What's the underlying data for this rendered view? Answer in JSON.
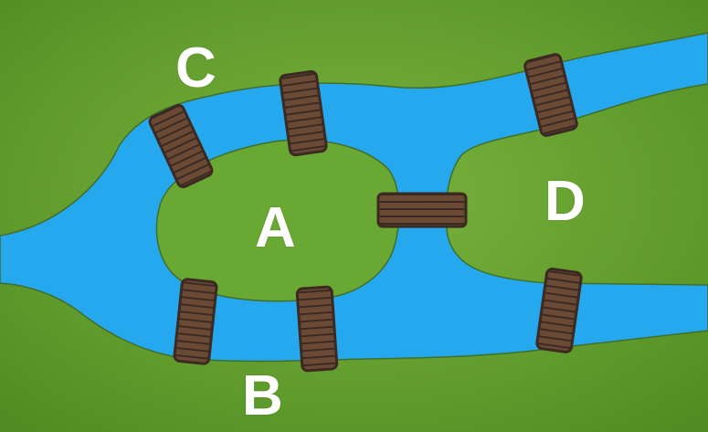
{
  "regions": {
    "c": {
      "label": "C"
    },
    "a": {
      "label": "A"
    },
    "d": {
      "label": "D"
    },
    "b": {
      "label": "B"
    }
  },
  "bridges": [
    {
      "connects": [
        "C",
        "A"
      ]
    },
    {
      "connects": [
        "C",
        "A"
      ]
    },
    {
      "connects": [
        "C",
        "D"
      ]
    },
    {
      "connects": [
        "A",
        "D"
      ]
    },
    {
      "connects": [
        "A",
        "B"
      ]
    },
    {
      "connects": [
        "A",
        "B"
      ]
    },
    {
      "connects": [
        "D",
        "B"
      ]
    }
  ],
  "colors": {
    "grass": "#5f9a2c",
    "grass_light": "#74ad3a",
    "water": "#26a8ee",
    "water_edge": "#3f6f2a",
    "bridge_wood": "#6b4a35",
    "bridge_dark": "#3c2a22",
    "label": "#ffffff"
  }
}
